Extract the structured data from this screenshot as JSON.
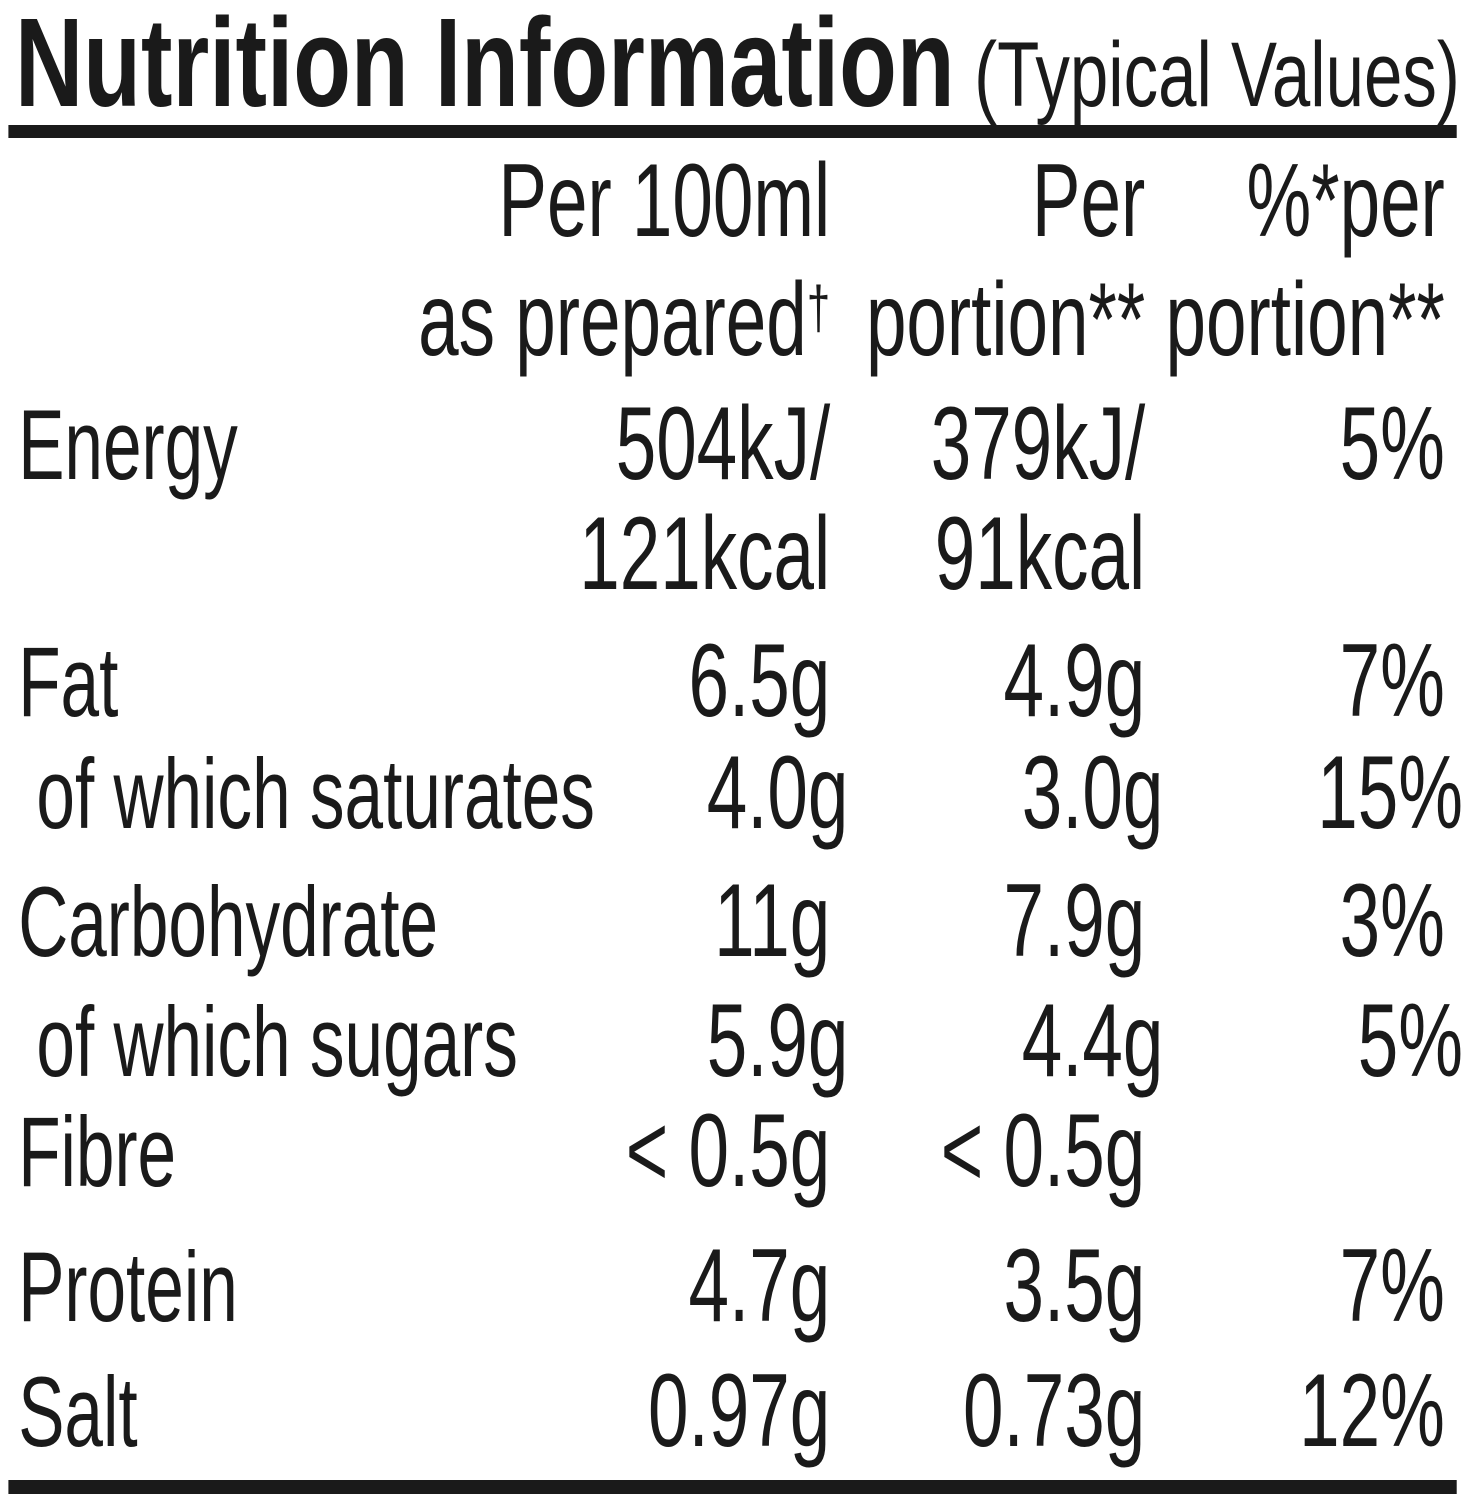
{
  "title": {
    "main": "Nutrition Information",
    "sub": "(Typical Values)"
  },
  "header": {
    "per_100ml": {
      "line1": "Per 100ml",
      "line2_text": "as prepared",
      "line2_footnote": "†"
    },
    "per_portion": {
      "line1": "Per",
      "line2": "portion**"
    },
    "pct_per_portion": {
      "line1": "%*per",
      "line2": "portion**"
    }
  },
  "rows": [
    {
      "label": "Energy",
      "per100": [
        "504kJ/",
        "121kcal"
      ],
      "portion": [
        "379kJ/",
        "91kcal"
      ],
      "pct": [
        "5%",
        ""
      ]
    },
    {
      "label": "Fat",
      "per100": [
        "6.5g"
      ],
      "portion": [
        "4.9g"
      ],
      "pct": [
        "7%"
      ]
    },
    {
      "label": "of which saturates",
      "per100": [
        "4.0g"
      ],
      "portion": [
        "3.0g"
      ],
      "pct": [
        "15%"
      ]
    },
    {
      "label": "Carbohydrate",
      "per100": [
        "11g"
      ],
      "portion": [
        "7.9g"
      ],
      "pct": [
        "3%"
      ]
    },
    {
      "label": "of which sugars",
      "per100": [
        "5.9g"
      ],
      "portion": [
        "4.4g"
      ],
      "pct": [
        "5%"
      ]
    },
    {
      "label": "Fibre",
      "per100": [
        "< 0.5g"
      ],
      "portion": [
        "< 0.5g"
      ],
      "pct": [
        ""
      ]
    },
    {
      "label": "Protein",
      "per100": [
        "4.7g"
      ],
      "portion": [
        "3.5g"
      ],
      "pct": [
        "7%"
      ]
    },
    {
      "label": "Salt",
      "per100": [
        "0.97g"
      ],
      "portion": [
        "0.73g"
      ],
      "pct": [
        "12%"
      ]
    }
  ],
  "colors": {
    "text": "#1a1a1a",
    "rule": "#1a1a1a",
    "background": "#ffffff"
  }
}
